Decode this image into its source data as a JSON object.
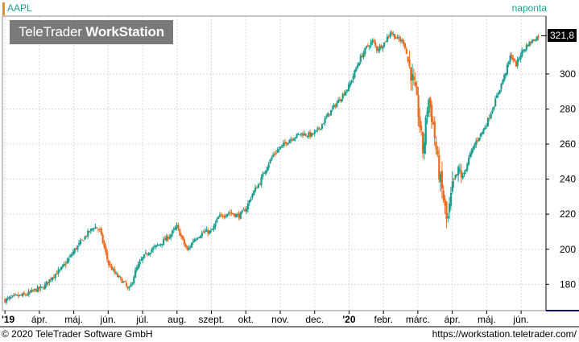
{
  "symbol": "AAPL",
  "period": "naponta",
  "logo": {
    "brand_regular": "TeleTrader",
    "brand_bold": "WorkStation"
  },
  "last_price_label": "321,8",
  "footer": {
    "copyright": "© 2020 TeleTrader Software GmbH",
    "website": "https://workstation.teletrader.com/"
  },
  "colors": {
    "up": "#1a9e8f",
    "down": "#f06a1c",
    "accent": "#f08a24",
    "grid": "#d9d9d9",
    "axis_rule": "#00008b"
  },
  "chart_data": {
    "type": "candlestick",
    "title": "",
    "xlabel": "",
    "ylabel": "",
    "ylim": [
      165,
      333
    ],
    "yticks": [
      180,
      200,
      220,
      240,
      260,
      280,
      300
    ],
    "xticks": [
      {
        "label": "'19",
        "month": 0
      },
      {
        "label": "ápr.",
        "month": 1
      },
      {
        "label": "máj.",
        "month": 2
      },
      {
        "label": "jún.",
        "month": 3
      },
      {
        "label": "júl.",
        "month": 4
      },
      {
        "label": "aug.",
        "month": 5
      },
      {
        "label": "szept.",
        "month": 6
      },
      {
        "label": "okt.",
        "month": 7
      },
      {
        "label": "nov.",
        "month": 8
      },
      {
        "label": "dec.",
        "month": 9
      },
      {
        "label": "'20",
        "month": 10
      },
      {
        "label": "febr.",
        "month": 11
      },
      {
        "label": "márc.",
        "month": 12
      },
      {
        "label": "ápr.",
        "month": 13
      },
      {
        "label": "máj.",
        "month": 14
      },
      {
        "label": "jún.",
        "month": 15
      }
    ],
    "grid": true,
    "last_value": 321.8,
    "close_path": [
      [
        0,
        171
      ],
      [
        0.3,
        173
      ],
      [
        0.6,
        174
      ],
      [
        0.9,
        177
      ],
      [
        1.1,
        178
      ],
      [
        1.4,
        185
      ],
      [
        1.6,
        188
      ],
      [
        1.8,
        193
      ],
      [
        2.0,
        199
      ],
      [
        2.2,
        204
      ],
      [
        2.4,
        209
      ],
      [
        2.6,
        213
      ],
      [
        2.75,
        211
      ],
      [
        2.9,
        200
      ],
      [
        3.0,
        192
      ],
      [
        3.2,
        186
      ],
      [
        3.5,
        180
      ],
      [
        3.6,
        176
      ],
      [
        3.8,
        188
      ],
      [
        4.0,
        195
      ],
      [
        4.2,
        199
      ],
      [
        4.5,
        203
      ],
      [
        4.8,
        208
      ],
      [
        5.0,
        213
      ],
      [
        5.1,
        208
      ],
      [
        5.3,
        199
      ],
      [
        5.5,
        206
      ],
      [
        5.8,
        210
      ],
      [
        6.0,
        210
      ],
      [
        6.2,
        218
      ],
      [
        6.5,
        221
      ],
      [
        6.8,
        219
      ],
      [
        7.0,
        223
      ],
      [
        7.2,
        232
      ],
      [
        7.4,
        238
      ],
      [
        7.6,
        247
      ],
      [
        7.8,
        254
      ],
      [
        8.0,
        258
      ],
      [
        8.3,
        263
      ],
      [
        8.6,
        266
      ],
      [
        8.9,
        265
      ],
      [
        9.1,
        268
      ],
      [
        9.4,
        277
      ],
      [
        9.7,
        285
      ],
      [
        10.0,
        293
      ],
      [
        10.3,
        308
      ],
      [
        10.5,
        315
      ],
      [
        10.7,
        319
      ],
      [
        10.8,
        314
      ],
      [
        11.0,
        317
      ],
      [
        11.2,
        324
      ],
      [
        11.4,
        320
      ],
      [
        11.6,
        318
      ],
      [
        11.75,
        304
      ],
      [
        11.9,
        292
      ],
      [
        12.0,
        280
      ],
      [
        12.15,
        255
      ],
      [
        12.3,
        287
      ],
      [
        12.45,
        270
      ],
      [
        12.6,
        245
      ],
      [
        12.75,
        228
      ],
      [
        12.85,
        214
      ],
      [
        13.0,
        235
      ],
      [
        13.2,
        245
      ],
      [
        13.3,
        241
      ],
      [
        13.5,
        253
      ],
      [
        13.7,
        262
      ],
      [
        13.9,
        268
      ],
      [
        14.0,
        272
      ],
      [
        14.2,
        282
      ],
      [
        14.4,
        293
      ],
      [
        14.55,
        301
      ],
      [
        14.7,
        311
      ],
      [
        14.85,
        305
      ],
      [
        15.0,
        312
      ],
      [
        15.2,
        317
      ],
      [
        15.4,
        320
      ],
      [
        15.5,
        321.8
      ]
    ]
  }
}
